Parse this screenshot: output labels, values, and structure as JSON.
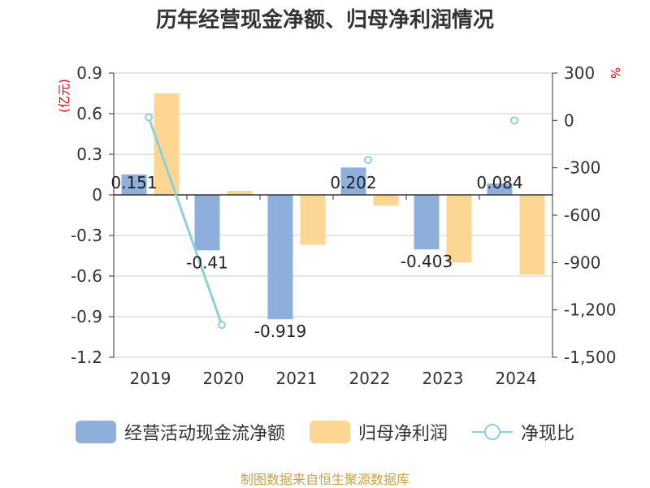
{
  "title": "历年经营现金净额、归母净利润情况",
  "source": "制图数据来自恒生聚源数据库",
  "chart_data": {
    "type": "bar",
    "categories": [
      "2019",
      "2020",
      "2021",
      "2022",
      "2023",
      "2024"
    ],
    "left_axis": {
      "unit_label": "(亿元)",
      "ylim": [
        -1.2,
        0.9
      ],
      "ticks": [
        "0.9",
        "0.6",
        "0.3",
        "0",
        "-0.3",
        "-0.6",
        "-0.9",
        "-1.2"
      ],
      "tick_values": [
        0.9,
        0.6,
        0.3,
        0,
        -0.3,
        -0.6,
        -0.9,
        -1.2
      ]
    },
    "right_axis": {
      "unit_label": "%",
      "ylim": [
        -1500,
        300
      ],
      "ticks": [
        "300",
        "0",
        "-300",
        "-600",
        "-900",
        "-1,200",
        "-1,500"
      ],
      "tick_values": [
        300,
        0,
        -300,
        -600,
        -900,
        -1200,
        -1500
      ]
    },
    "series": [
      {
        "name": "经营活动现金流净额",
        "type": "bar",
        "axis": "left",
        "color": "#8eaedb",
        "values": [
          0.151,
          -0.41,
          -0.919,
          0.202,
          -0.403,
          0.084
        ],
        "labels": [
          "0.151",
          "-0.41",
          "-0.919",
          "0.202",
          "-0.403",
          "0.084"
        ]
      },
      {
        "name": "归母净利润",
        "type": "bar",
        "axis": "left",
        "color": "#fdd693",
        "values": [
          0.75,
          0.03,
          -0.37,
          -0.08,
          -0.5,
          -0.59
        ]
      },
      {
        "name": "净现比",
        "type": "line",
        "axis": "right",
        "color": "#8fd0d6",
        "values": [
          20,
          -1295,
          null,
          -250,
          null,
          0
        ]
      }
    ],
    "grid": true,
    "legend_position": "bottom"
  }
}
